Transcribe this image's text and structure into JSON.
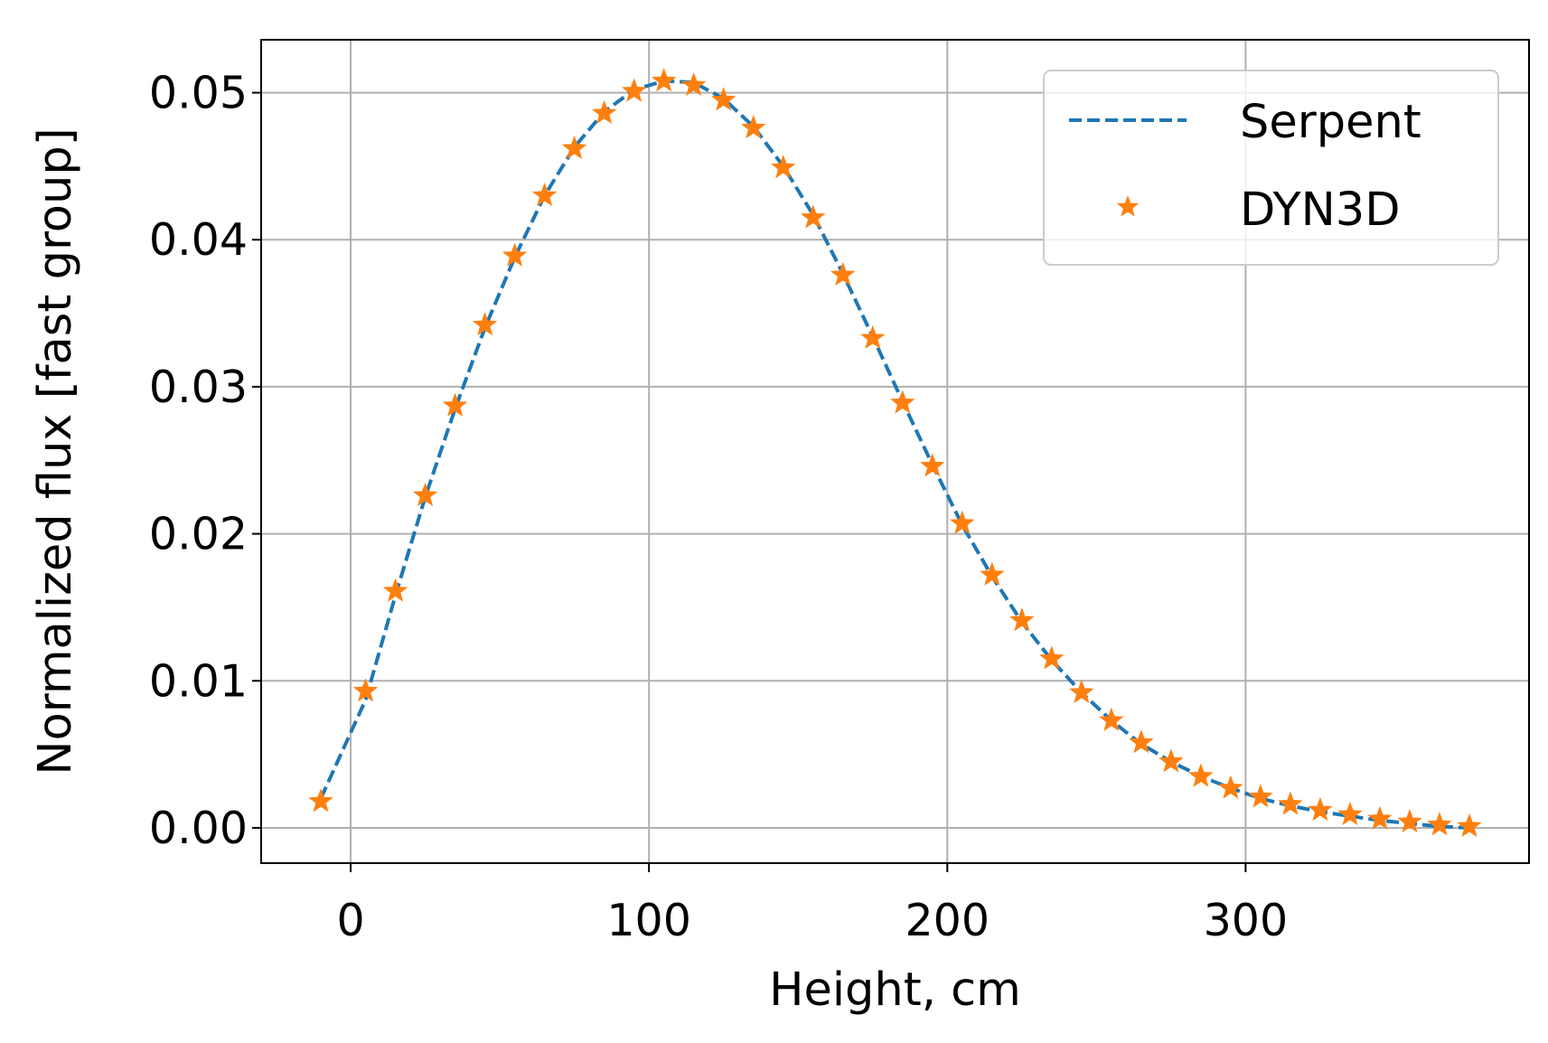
{
  "chart_data": {
    "type": "line",
    "title": "",
    "xlabel": "Height, cm",
    "ylabel": "Normalized flux [fast group]",
    "xlim": [
      -30,
      395
    ],
    "ylim": [
      -0.0024,
      0.0536
    ],
    "xticks": [
      0,
      100,
      200,
      300
    ],
    "xtick_labels": [
      "0",
      "100",
      "200",
      "300"
    ],
    "yticks": [
      0.0,
      0.01,
      0.02,
      0.03,
      0.04,
      0.05
    ],
    "ytick_labels": [
      "0.00",
      "0.01",
      "0.02",
      "0.03",
      "0.04",
      "0.05"
    ],
    "grid": true,
    "legend_position": "top-right",
    "series": [
      {
        "name": "Serpent",
        "style": "dashed-line",
        "color": "#1f77b4",
        "x": [
          -10,
          5,
          15,
          25,
          35,
          45,
          55,
          65,
          75,
          85,
          95,
          105,
          115,
          125,
          135,
          145,
          155,
          165,
          175,
          185,
          195,
          205,
          215,
          225,
          235,
          245,
          255,
          265,
          275,
          285,
          295,
          305,
          315,
          325,
          335,
          345,
          355,
          365,
          375
        ],
        "y": [
          0.002,
          0.0087,
          0.0158,
          0.0225,
          0.0285,
          0.034,
          0.0388,
          0.043,
          0.0463,
          0.0487,
          0.0502,
          0.0508,
          0.0507,
          0.0496,
          0.0477,
          0.045,
          0.0417,
          0.0377,
          0.0334,
          0.029,
          0.0247,
          0.0206,
          0.0171,
          0.014,
          0.0114,
          0.0092,
          0.0073,
          0.0057,
          0.0045,
          0.0035,
          0.0027,
          0.002,
          0.0015,
          0.0011,
          0.0008,
          0.0005,
          0.0003,
          0.0001,
          0.0
        ]
      },
      {
        "name": "DYN3D",
        "style": "star-markers",
        "color": "#ff7f0e",
        "x": [
          -10,
          5,
          15,
          25,
          35,
          45,
          55,
          65,
          75,
          85,
          95,
          105,
          115,
          125,
          135,
          145,
          155,
          165,
          175,
          185,
          195,
          205,
          215,
          225,
          235,
          245,
          255,
          265,
          275,
          285,
          295,
          305,
          315,
          325,
          335,
          345,
          355,
          365,
          375
        ],
        "y": [
          0.0018,
          0.0093,
          0.0161,
          0.0226,
          0.0287,
          0.0342,
          0.0389,
          0.043,
          0.0462,
          0.0486,
          0.0501,
          0.0508,
          0.0505,
          0.0495,
          0.0476,
          0.0449,
          0.0415,
          0.0376,
          0.0333,
          0.0289,
          0.0246,
          0.0207,
          0.0172,
          0.0141,
          0.0115,
          0.0092,
          0.0073,
          0.0058,
          0.0045,
          0.0035,
          0.0027,
          0.0021,
          0.0016,
          0.0012,
          0.0009,
          0.0006,
          0.0004,
          0.0002,
          0.0001
        ]
      }
    ]
  }
}
